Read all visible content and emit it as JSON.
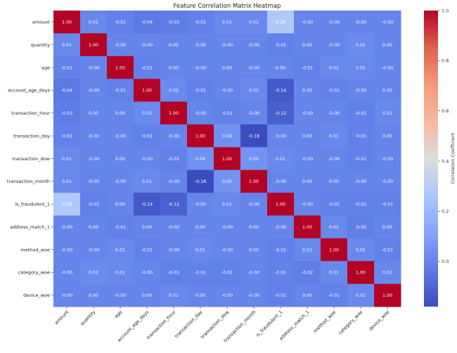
{
  "chart_data": {
    "type": "heatmap",
    "title": "Feature Correlation Matrix Heatmap",
    "labels": [
      "amount",
      "quantity",
      "age",
      "account_age_days",
      "transaction_hour",
      "transaction_day",
      "transaction_dow",
      "transaction_month",
      "is_fraudulent_1",
      "address_match_1",
      "method_woe",
      "category_woe",
      "device_woe"
    ],
    "matrix": [
      [
        "1.00",
        "0.01",
        "-0.01",
        "-0.04",
        "-0.03",
        "-0.01",
        "0.01",
        "0.01",
        "0.28",
        "-0.00",
        "-0.00",
        "-0.00",
        "-0.00"
      ],
      [
        "0.01",
        "1.00",
        "-0.00",
        "-0.00",
        "0.00",
        "-0.00",
        "-0.00",
        "-0.00",
        "-0.01",
        "0.00",
        "-0.00",
        "0.02",
        "0.00"
      ],
      [
        "-0.01",
        "-0.00",
        "1.00",
        "-0.01",
        "0.00",
        "-0.00",
        "0.00",
        "-0.00",
        "0.00",
        "-0.01",
        "0.01",
        "0.01",
        "-0.00"
      ],
      [
        "-0.04",
        "-0.00",
        "-0.01",
        "1.00",
        "0.02",
        "-0.01",
        "-0.00",
        "0.01",
        "-0.14",
        "0.00",
        "-0.01",
        "-0.00",
        "0.00"
      ],
      [
        "-0.03",
        "0.00",
        "0.00",
        "0.02",
        "1.00",
        "-0.00",
        "-0.01",
        "-0.00",
        "-0.12",
        "-0.00",
        "-0.00",
        "-0.01",
        "0.01"
      ],
      [
        "-0.01",
        "-0.00",
        "-0.00",
        "-0.01",
        "-0.00",
        "1.00",
        "0.04",
        "-0.18",
        "-0.00",
        "0.00",
        "0.01",
        "-0.01",
        "0.00"
      ],
      [
        "0.01",
        "-0.00",
        "0.00",
        "-0.00",
        "-0.01",
        "0.04",
        "1.00",
        "0.05",
        "0.01",
        "-0.00",
        "-0.00",
        "-0.01",
        "-0.00"
      ],
      [
        "0.01",
        "-0.00",
        "-0.00",
        "0.01",
        "-0.00",
        "-0.18",
        "0.05",
        "1.00",
        "-0.00",
        "0.00",
        "0.00",
        "-0.00",
        "-0.00"
      ],
      [
        "0.28",
        "-0.01",
        "0.00",
        "-0.14",
        "-0.12",
        "-0.00",
        "0.01",
        "-0.00",
        "1.00",
        "-0.00",
        "-0.01",
        "-0.01",
        "-0.01"
      ],
      [
        "-0.00",
        "0.00",
        "-0.01",
        "0.00",
        "-0.00",
        "0.00",
        "-0.00",
        "0.00",
        "-0.00",
        "1.00",
        "0.01",
        "-0.02",
        "0.00"
      ],
      [
        "-0.00",
        "-0.00",
        "0.01",
        "-0.01",
        "-0.00",
        "0.01",
        "-0.00",
        "0.00",
        "-0.01",
        "0.01",
        "1.00",
        "0.01",
        "-0.01"
      ],
      [
        "-0.00",
        "0.02",
        "0.01",
        "-0.00",
        "-0.01",
        "-0.01",
        "-0.01",
        "-0.00",
        "-0.01",
        "-0.02",
        "0.01",
        "1.00",
        "0.01"
      ],
      [
        "-0.00",
        "0.00",
        "-0.00",
        "0.00",
        "0.01",
        "0.00",
        "-0.00",
        "-0.00",
        "-0.01",
        "0.00",
        "-0.01",
        "0.01",
        "1.00"
      ]
    ],
    "colorbar": {
      "label": "Correlation Coefficient",
      "range": [
        -0.18,
        1.0
      ],
      "ticks": [
        "0.0",
        "0.2",
        "0.4",
        "0.6",
        "0.8",
        "1.0"
      ],
      "colormap": "coolwarm"
    },
    "colors": {
      "stops": [
        "#3b4cc0",
        "#5d7ce6",
        "#82a6fb",
        "#aac7fd",
        "#dddcdc",
        "#f7b89c",
        "#f49a7b",
        "#de604d",
        "#b40426"
      ],
      "cell_text": "#ffffff",
      "label_text": "#222222"
    }
  }
}
